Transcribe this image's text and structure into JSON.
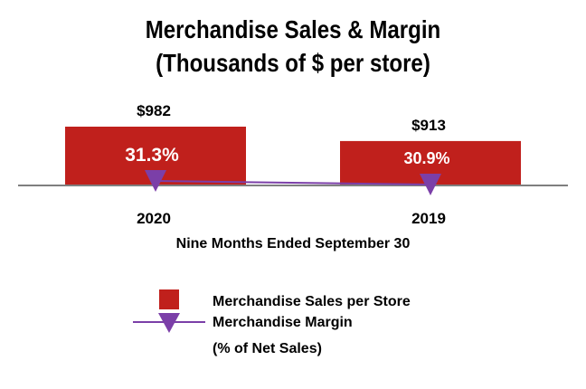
{
  "chart_data": {
    "type": "bar",
    "title_line1": "Merchandise Sales & Margin",
    "title_line2": "(Thousands of $ per store)",
    "xlabel": "Nine Months Ended September 30",
    "categories": [
      "2020",
      "2019"
    ],
    "series": [
      {
        "name": "Merchandise Sales per Store",
        "type": "bar",
        "values": [
          982,
          913
        ],
        "labels": [
          "$982",
          "$913"
        ]
      },
      {
        "name": "Merchandise Margin",
        "name_line2": "(% of Net Sales)",
        "type": "line",
        "values": [
          31.3,
          30.9
        ],
        "labels": [
          "31.3%",
          "30.9%"
        ]
      }
    ],
    "legend_position": "bottom-center",
    "colors": {
      "bar": "#c0201c",
      "line": "#7b3fa8",
      "axis": "#7f7f7f"
    }
  }
}
